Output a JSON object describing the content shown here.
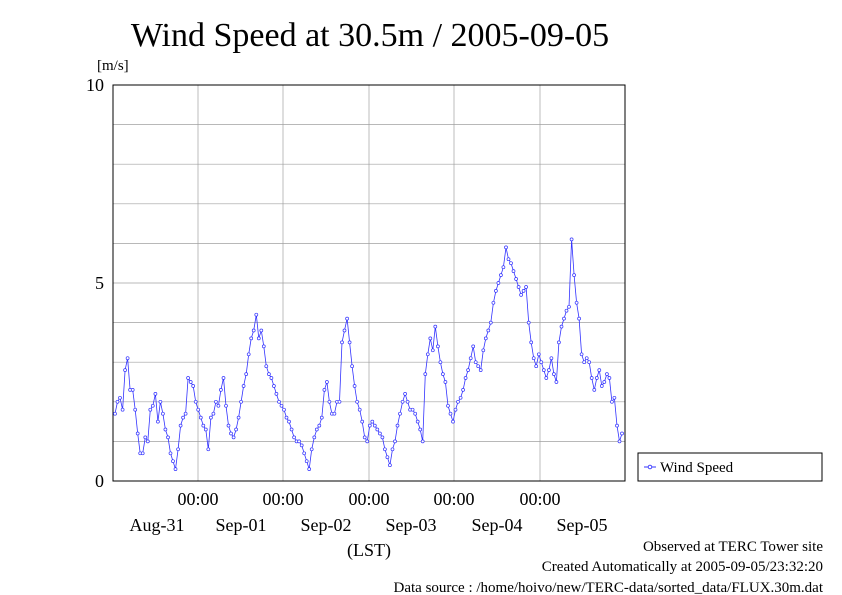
{
  "chart_data": {
    "type": "line",
    "title": "Wind Speed at 30.5m / 2005-09-05",
    "ylabel": "[m/s]",
    "xlabel": "(LST)",
    "ylim": [
      0,
      10
    ],
    "y_ticks": [
      "0",
      "5",
      "10"
    ],
    "x_time_ticks": [
      "00:00",
      "00:00",
      "00:00",
      "00:00",
      "00:00"
    ],
    "x_date_labels": [
      "Aug-31",
      "Sep-01",
      "Sep-02",
      "Sep-03",
      "Sep-04",
      "Sep-05"
    ],
    "grid": true,
    "legend_position": "right",
    "series": [
      {
        "name": "Wind Speed",
        "color": "#3333ff",
        "values": [
          1.7,
          2.0,
          2.1,
          1.8,
          2.8,
          3.1,
          2.3,
          2.3,
          1.8,
          1.2,
          0.7,
          0.7,
          1.1,
          1.0,
          1.8,
          1.9,
          2.2,
          1.5,
          2.0,
          1.7,
          1.3,
          1.1,
          0.7,
          0.5,
          0.3,
          0.8,
          1.4,
          1.6,
          1.7,
          2.6,
          2.5,
          2.4,
          2.0,
          1.8,
          1.6,
          1.4,
          1.3,
          0.8,
          1.6,
          1.7,
          2.0,
          1.9,
          2.3,
          2.6,
          1.9,
          1.4,
          1.2,
          1.1,
          1.3,
          1.6,
          2.0,
          2.4,
          2.7,
          3.2,
          3.6,
          3.8,
          4.2,
          3.6,
          3.8,
          3.4,
          2.9,
          2.7,
          2.6,
          2.4,
          2.2,
          2.0,
          1.9,
          1.8,
          1.6,
          1.5,
          1.3,
          1.1,
          1.0,
          1.0,
          0.9,
          0.7,
          0.5,
          0.3,
          0.8,
          1.1,
          1.3,
          1.4,
          1.6,
          2.3,
          2.5,
          2.0,
          1.7,
          1.7,
          2.0,
          2.0,
          3.5,
          3.8,
          4.1,
          3.5,
          2.9,
          2.4,
          2.0,
          1.8,
          1.5,
          1.1,
          1.0,
          1.4,
          1.5,
          1.4,
          1.3,
          1.2,
          1.1,
          0.8,
          0.6,
          0.4,
          0.8,
          1.0,
          1.4,
          1.7,
          2.0,
          2.2,
          2.0,
          1.8,
          1.8,
          1.7,
          1.5,
          1.3,
          1.0,
          2.7,
          3.2,
          3.6,
          3.3,
          3.9,
          3.4,
          3.0,
          2.7,
          2.5,
          1.9,
          1.7,
          1.5,
          1.8,
          2.0,
          2.1,
          2.3,
          2.6,
          2.8,
          3.1,
          3.4,
          3.0,
          2.9,
          2.8,
          3.3,
          3.6,
          3.8,
          4.0,
          4.5,
          4.8,
          5.0,
          5.2,
          5.4,
          5.9,
          5.6,
          5.5,
          5.3,
          5.1,
          4.9,
          4.7,
          4.8,
          4.9,
          4.0,
          3.5,
          3.1,
          2.9,
          3.2,
          3.0,
          2.8,
          2.6,
          2.8,
          3.1,
          2.7,
          2.5,
          3.5,
          3.9,
          4.1,
          4.3,
          4.4,
          6.1,
          5.2,
          4.5,
          4.1,
          3.2,
          3.0,
          3.1,
          3.0,
          2.6,
          2.3,
          2.6,
          2.8,
          2.4,
          2.5,
          2.7,
          2.6,
          2.0,
          2.1,
          1.4,
          1.0,
          1.2
        ]
      }
    ]
  },
  "footer": {
    "line1": "Observed at TERC Tower site",
    "line2": "Created Automatically at 2005-09-05/23:32:20",
    "line3": "Data source : /home/hoivo/new/TERC-data/sorted_data/FLUX.30m.dat"
  }
}
